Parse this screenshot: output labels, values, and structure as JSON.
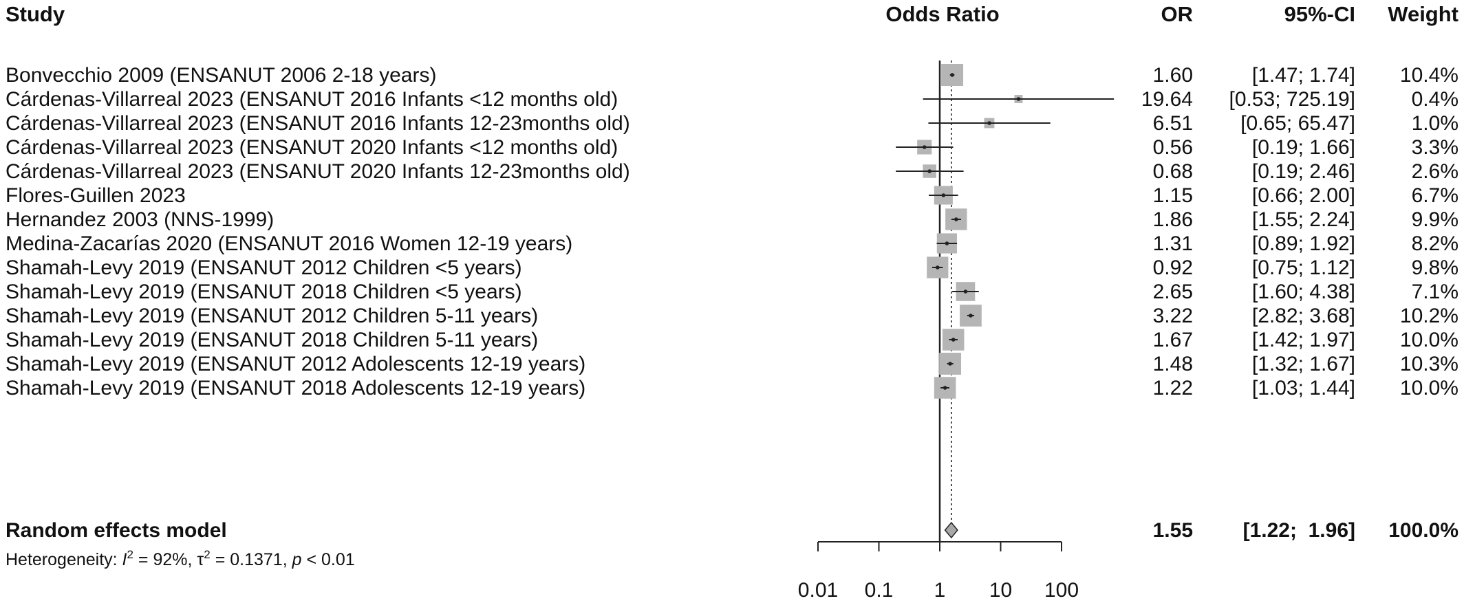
{
  "chart_data": {
    "type": "forest",
    "scale": "log",
    "xlabel": "Odds Ratio",
    "xlim": [
      0.01,
      100
    ],
    "ticks": [
      0.01,
      0.1,
      1,
      10,
      100
    ],
    "tick_labels": [
      "0.01",
      "0.1",
      "1",
      "10",
      "100"
    ],
    "columns": {
      "study": "Study",
      "effect": "Odds Ratio",
      "or": "OR",
      "ci": "95%-CI",
      "weight": "Weight"
    },
    "studies": [
      {
        "label": "Bonvecchio 2009 (ENSANUT 2006 2-18 years)",
        "or": 1.6,
        "lo": 1.47,
        "hi": 1.74,
        "or_text": "1.60",
        "ci_text": "[1.47;  1.74]",
        "weight": 10.4,
        "weight_text": "10.4%"
      },
      {
        "label": "Cárdenas-Villarreal 2023  (ENSANUT 2016 Infants <12 months old)",
        "or": 19.64,
        "lo": 0.53,
        "hi": 725.19,
        "or_text": "19.64",
        "ci_text": "[0.53; 725.19]",
        "weight": 0.4,
        "weight_text": "0.4%"
      },
      {
        "label": "Cárdenas-Villarreal 2023  (ENSANUT 2016 Infants 12-23months old)",
        "or": 6.51,
        "lo": 0.65,
        "hi": 65.47,
        "or_text": "6.51",
        "ci_text": "[0.65;  65.47]",
        "weight": 1.0,
        "weight_text": "1.0%"
      },
      {
        "label": "Cárdenas-Villarreal 2023  (ENSANUT 2020 Infants <12 months old)",
        "or": 0.56,
        "lo": 0.19,
        "hi": 1.66,
        "or_text": "0.56",
        "ci_text": "[0.19;  1.66]",
        "weight": 3.3,
        "weight_text": "3.3%"
      },
      {
        "label": "Cárdenas-Villarreal 2023  (ENSANUT 2020 Infants 12-23months old)",
        "or": 0.68,
        "lo": 0.19,
        "hi": 2.46,
        "or_text": "0.68",
        "ci_text": "[0.19;  2.46]",
        "weight": 2.6,
        "weight_text": "2.6%"
      },
      {
        "label": "Flores-Guillen 2023",
        "or": 1.15,
        "lo": 0.66,
        "hi": 2.0,
        "or_text": "1.15",
        "ci_text": "[0.66;  2.00]",
        "weight": 6.7,
        "weight_text": "6.7%"
      },
      {
        "label": "Hernandez 2003 (NNS-1999)",
        "or": 1.86,
        "lo": 1.55,
        "hi": 2.24,
        "or_text": "1.86",
        "ci_text": "[1.55;  2.24]",
        "weight": 9.9,
        "weight_text": "9.9%"
      },
      {
        "label": "Medina-Zacarías 2020 (ENSANUT 2016 Women 12-19 years)",
        "or": 1.31,
        "lo": 0.89,
        "hi": 1.92,
        "or_text": "1.31",
        "ci_text": "[0.89;  1.92]",
        "weight": 8.2,
        "weight_text": "8.2%"
      },
      {
        "label": "Shamah-Levy 2019 (ENSANUT 2012 Children <5 years)",
        "or": 0.92,
        "lo": 0.75,
        "hi": 1.12,
        "or_text": "0.92",
        "ci_text": "[0.75;  1.12]",
        "weight": 9.8,
        "weight_text": "9.8%"
      },
      {
        "label": "Shamah-Levy 2019 (ENSANUT 2018 Children <5 years)",
        "or": 2.65,
        "lo": 1.6,
        "hi": 4.38,
        "or_text": "2.65",
        "ci_text": "[1.60;  4.38]",
        "weight": 7.1,
        "weight_text": "7.1%"
      },
      {
        "label": "Shamah-Levy 2019 (ENSANUT 2012 Children 5-11 years)",
        "or": 3.22,
        "lo": 2.82,
        "hi": 3.68,
        "or_text": "3.22",
        "ci_text": "[2.82;  3.68]",
        "weight": 10.2,
        "weight_text": "10.2%"
      },
      {
        "label": "Shamah-Levy 2019 (ENSANUT 2018 Children 5-11 years)",
        "or": 1.67,
        "lo": 1.42,
        "hi": 1.97,
        "or_text": "1.67",
        "ci_text": "[1.42;  1.97]",
        "weight": 10.0,
        "weight_text": "10.0%"
      },
      {
        "label": "Shamah-Levy 2019 (ENSANUT 2012 Adolescents 12-19 years)",
        "or": 1.48,
        "lo": 1.32,
        "hi": 1.67,
        "or_text": "1.48",
        "ci_text": "[1.32;  1.67]",
        "weight": 10.3,
        "weight_text": "10.3%"
      },
      {
        "label": "Shamah-Levy 2019 (ENSANUT 2018 Adolescents 12-19 years)",
        "or": 1.22,
        "lo": 1.03,
        "hi": 1.44,
        "or_text": "1.22",
        "ci_text": "[1.03;  1.44]",
        "weight": 10.0,
        "weight_text": "10.0%"
      }
    ],
    "pooled": {
      "label": "Random effects model",
      "or": 1.55,
      "lo": 1.22,
      "hi": 1.96,
      "or_text": "1.55",
      "ci_text": "[1.22;  1.96]",
      "weight_text": "100.0%"
    },
    "heterogeneity": {
      "prefix": "Heterogeneity: ",
      "i2_symbol": "I",
      "i2_value": " = 92%, ",
      "tau2_symbol": "τ",
      "tau2_value": " = 0.1371, ",
      "p_symbol": "p",
      "p_value": " < 0.01"
    },
    "colors": {
      "text": "#111111",
      "line": "#222222",
      "square": "#b5b5b5",
      "diamond": "#a8a8a8",
      "dotted": "#222222"
    }
  }
}
